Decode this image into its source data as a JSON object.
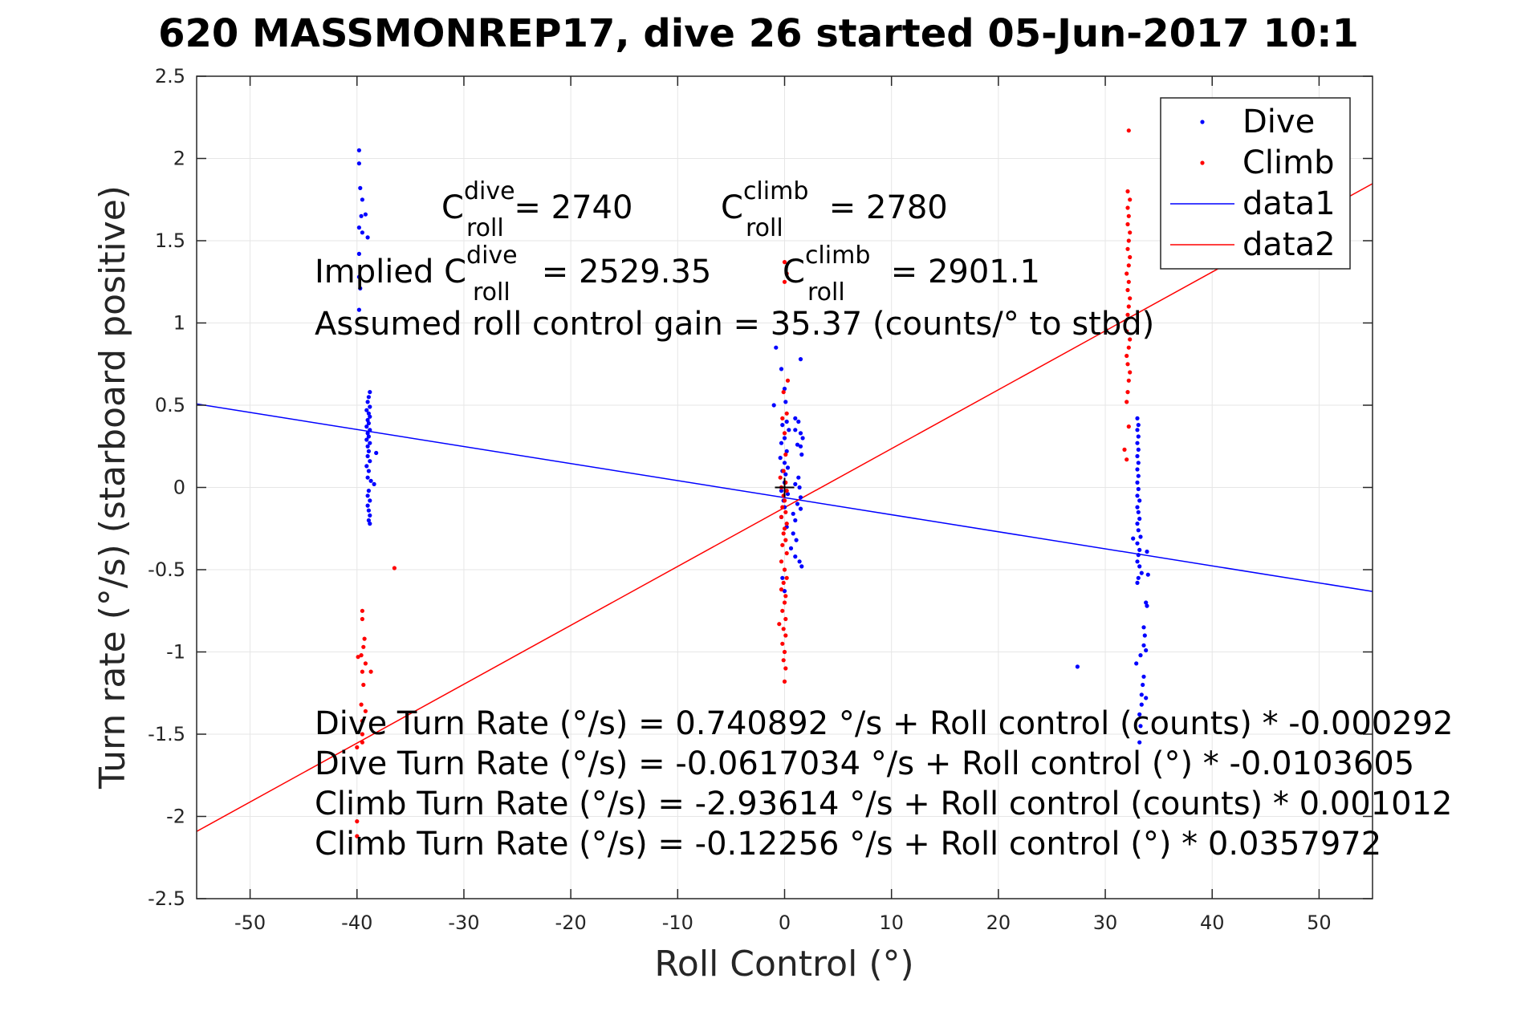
{
  "chart_data": {
    "type": "scatter",
    "title": "620 MASSMONREP17, dive 26 started 05-Jun-2017 10:1",
    "xlabel": "Roll Control (°)",
    "ylabel": "Turn rate (°/s) (starboard positive)",
    "xlim": [
      -55,
      55
    ],
    "ylim": [
      -2.5,
      2.5
    ],
    "xticks": [
      -50,
      -40,
      -30,
      -20,
      -10,
      0,
      10,
      20,
      30,
      40,
      50
    ],
    "xtick_labels": [
      "-50",
      "-40",
      "-30",
      "-20",
      "-10",
      "0",
      "10",
      "20",
      "30",
      "40",
      "50"
    ],
    "yticks": [
      -2.5,
      -2,
      -1.5,
      -1,
      -0.5,
      0,
      0.5,
      1,
      1.5,
      2,
      2.5
    ],
    "ytick_labels": [
      "-2.5",
      "-2",
      "-1.5",
      "-1",
      "-0.5",
      "0",
      "0.5",
      "1",
      "1.5",
      "2",
      "2.5"
    ],
    "grid": true,
    "legend_position": "top-right",
    "legend": [
      "Dive",
      "Climb",
      "data1",
      "data2"
    ],
    "series": [
      {
        "name": "Dive",
        "kind": "points",
        "color": "#0000ff",
        "points": [
          [
            -39.8,
            2.05
          ],
          [
            -39.8,
            1.97
          ],
          [
            -39.7,
            1.82
          ],
          [
            -39.5,
            1.75
          ],
          [
            -39.6,
            1.65
          ],
          [
            -39.2,
            1.66
          ],
          [
            -39.8,
            1.58
          ],
          [
            -39.5,
            1.55
          ],
          [
            -39.0,
            1.52
          ],
          [
            -39.8,
            1.42
          ],
          [
            -39.8,
            1.28
          ],
          [
            -39.7,
            1.21
          ],
          [
            -39.8,
            1.08
          ],
          [
            -38.8,
            0.58
          ],
          [
            -38.9,
            0.55
          ],
          [
            -39.0,
            0.52
          ],
          [
            -38.8,
            0.49
          ],
          [
            -39.1,
            0.47
          ],
          [
            -38.9,
            0.45
          ],
          [
            -38.8,
            0.43
          ],
          [
            -39.0,
            0.41
          ],
          [
            -38.9,
            0.39
          ],
          [
            -39.1,
            0.37
          ],
          [
            -38.8,
            0.35
          ],
          [
            -39.0,
            0.33
          ],
          [
            -38.9,
            0.31
          ],
          [
            -39.1,
            0.29
          ],
          [
            -38.8,
            0.27
          ],
          [
            -39.0,
            0.25
          ],
          [
            -38.9,
            0.22
          ],
          [
            -38.2,
            0.21
          ],
          [
            -39.0,
            0.19
          ],
          [
            -38.8,
            0.16
          ],
          [
            -39.1,
            0.13
          ],
          [
            -38.9,
            0.1
          ],
          [
            -39.0,
            0.06
          ],
          [
            -38.7,
            0.04
          ],
          [
            -38.4,
            0.02
          ],
          [
            -38.9,
            -0.02
          ],
          [
            -39.0,
            -0.05
          ],
          [
            -38.8,
            -0.08
          ],
          [
            -39.0,
            -0.11
          ],
          [
            -38.9,
            -0.14
          ],
          [
            -38.8,
            -0.17
          ],
          [
            -38.9,
            -0.2
          ],
          [
            -38.8,
            -0.22
          ],
          [
            -0.8,
            0.85
          ],
          [
            -0.3,
            0.72
          ],
          [
            1.5,
            0.78
          ],
          [
            -1.0,
            0.5
          ],
          [
            0.1,
            0.52
          ],
          [
            0.0,
            0.6
          ],
          [
            0.2,
            0.4
          ],
          [
            1.0,
            0.42
          ],
          [
            1.3,
            0.4
          ],
          [
            -0.2,
            0.38
          ],
          [
            0.4,
            0.35
          ],
          [
            1.0,
            0.35
          ],
          [
            1.5,
            0.33
          ],
          [
            1.7,
            0.3
          ],
          [
            0.0,
            0.3
          ],
          [
            -0.3,
            0.27
          ],
          [
            1.2,
            0.26
          ],
          [
            1.5,
            0.25
          ],
          [
            0.2,
            0.22
          ],
          [
            1.6,
            0.2
          ],
          [
            -0.4,
            0.18
          ],
          [
            0.0,
            0.15
          ],
          [
            0.3,
            0.12
          ],
          [
            -0.2,
            0.1
          ],
          [
            0.1,
            0.08
          ],
          [
            1.3,
            0.06
          ],
          [
            0.0,
            0.03
          ],
          [
            1.0,
            0.02
          ],
          [
            1.4,
            0.0
          ],
          [
            -0.3,
            -0.02
          ],
          [
            0.3,
            -0.04
          ],
          [
            1.5,
            -0.06
          ],
          [
            -0.1,
            -0.08
          ],
          [
            1.2,
            -0.1
          ],
          [
            0.0,
            -0.12
          ],
          [
            1.5,
            -0.13
          ],
          [
            0.8,
            -0.16
          ],
          [
            -0.3,
            -0.18
          ],
          [
            1.0,
            -0.2
          ],
          [
            0.2,
            -0.24
          ],
          [
            0.8,
            -0.28
          ],
          [
            1.1,
            -0.32
          ],
          [
            0.6,
            -0.37
          ],
          [
            1.0,
            -0.42
          ],
          [
            1.4,
            -0.45
          ],
          [
            1.6,
            -0.48
          ],
          [
            -0.2,
            -0.55
          ],
          [
            0.0,
            -0.63
          ],
          [
            27.4,
            -1.09
          ],
          [
            33.0,
            0.42
          ],
          [
            33.1,
            0.38
          ],
          [
            33.0,
            0.35
          ],
          [
            33.1,
            0.31
          ],
          [
            33.0,
            0.27
          ],
          [
            33.1,
            0.23
          ],
          [
            33.0,
            0.19
          ],
          [
            33.1,
            0.15
          ],
          [
            33.0,
            0.11
          ],
          [
            33.1,
            0.07
          ],
          [
            33.0,
            0.03
          ],
          [
            33.1,
            -0.01
          ],
          [
            33.0,
            -0.05
          ],
          [
            33.2,
            -0.08
          ],
          [
            33.0,
            -0.12
          ],
          [
            33.1,
            -0.15
          ],
          [
            33.2,
            -0.19
          ],
          [
            33.0,
            -0.22
          ],
          [
            33.1,
            -0.26
          ],
          [
            33.3,
            -0.3
          ],
          [
            32.6,
            -0.31
          ],
          [
            33.0,
            -0.34
          ],
          [
            33.2,
            -0.38
          ],
          [
            33.9,
            -0.39
          ],
          [
            33.1,
            -0.41
          ],
          [
            33.0,
            -0.45
          ],
          [
            33.2,
            -0.48
          ],
          [
            33.4,
            -0.52
          ],
          [
            33.1,
            -0.55
          ],
          [
            33.0,
            -0.58
          ],
          [
            34.0,
            -0.53
          ],
          [
            33.8,
            -0.7
          ],
          [
            33.9,
            -0.72
          ],
          [
            33.6,
            -0.85
          ],
          [
            33.7,
            -0.9
          ],
          [
            33.6,
            -0.96
          ],
          [
            33.8,
            -0.99
          ],
          [
            33.3,
            -1.02
          ],
          [
            32.9,
            -1.07
          ],
          [
            33.6,
            -1.15
          ],
          [
            33.5,
            -1.2
          ],
          [
            33.4,
            -1.26
          ],
          [
            33.8,
            -1.28
          ],
          [
            33.4,
            -1.32
          ],
          [
            33.2,
            -1.38
          ],
          [
            33.3,
            -1.45
          ],
          [
            33.2,
            -1.55
          ]
        ]
      },
      {
        "name": "Climb",
        "kind": "points",
        "color": "#ff0000",
        "points": [
          [
            -36.5,
            -0.49
          ],
          [
            -39.5,
            -0.75
          ],
          [
            -39.5,
            -0.8
          ],
          [
            -39.3,
            -0.92
          ],
          [
            -39.4,
            -0.97
          ],
          [
            -39.6,
            -1.02
          ],
          [
            -39.9,
            -1.03
          ],
          [
            -39.2,
            -1.07
          ],
          [
            -39.5,
            -1.12
          ],
          [
            -38.7,
            -1.12
          ],
          [
            -39.4,
            -1.2
          ],
          [
            -39.6,
            -1.32
          ],
          [
            -39.2,
            -1.36
          ],
          [
            -39.5,
            -1.42
          ],
          [
            -39.5,
            -1.5
          ],
          [
            -39.5,
            -1.55
          ],
          [
            -40.0,
            -1.58
          ],
          [
            -40.0,
            -2.03
          ],
          [
            -40.0,
            -2.12
          ],
          [
            0.0,
            1.37
          ],
          [
            0.2,
            1.3
          ],
          [
            0.0,
            1.25
          ],
          [
            0.3,
            0.65
          ],
          [
            -0.1,
            0.58
          ],
          [
            0.2,
            0.45
          ],
          [
            -0.2,
            0.42
          ],
          [
            0.0,
            0.33
          ],
          [
            0.1,
            0.2
          ],
          [
            -0.1,
            0.1
          ],
          [
            -0.4,
            0.06
          ],
          [
            0.1,
            0.03
          ],
          [
            -0.3,
            0.0
          ],
          [
            0.2,
            -0.02
          ],
          [
            -0.1,
            -0.05
          ],
          [
            0.0,
            -0.08
          ],
          [
            -0.2,
            -0.12
          ],
          [
            0.1,
            -0.15
          ],
          [
            -0.3,
            -0.18
          ],
          [
            0.2,
            -0.22
          ],
          [
            0.0,
            -0.25
          ],
          [
            -0.1,
            -0.28
          ],
          [
            0.1,
            -0.32
          ],
          [
            -0.2,
            -0.35
          ],
          [
            0.2,
            -0.4
          ],
          [
            -0.3,
            -0.45
          ],
          [
            0.0,
            -0.5
          ],
          [
            0.2,
            -0.55
          ],
          [
            -0.1,
            -0.58
          ],
          [
            -0.3,
            -0.62
          ],
          [
            0.1,
            -0.66
          ],
          [
            0.0,
            -0.7
          ],
          [
            -0.2,
            -0.75
          ],
          [
            0.1,
            -0.8
          ],
          [
            -0.5,
            -0.83
          ],
          [
            -0.1,
            -0.86
          ],
          [
            0.1,
            -0.9
          ],
          [
            -0.2,
            -0.95
          ],
          [
            0.0,
            -1.0
          ],
          [
            -0.1,
            -1.05
          ],
          [
            0.1,
            -1.1
          ],
          [
            0.0,
            -1.18
          ],
          [
            32.2,
            2.17
          ],
          [
            32.1,
            1.8
          ],
          [
            32.3,
            1.75
          ],
          [
            32.1,
            1.7
          ],
          [
            32.2,
            1.65
          ],
          [
            32.1,
            1.6
          ],
          [
            32.3,
            1.55
          ],
          [
            32.2,
            1.5
          ],
          [
            32.1,
            1.45
          ],
          [
            32.3,
            1.4
          ],
          [
            32.2,
            1.35
          ],
          [
            32.0,
            1.3
          ],
          [
            32.2,
            1.25
          ],
          [
            32.1,
            1.2
          ],
          [
            32.3,
            1.15
          ],
          [
            32.2,
            1.1
          ],
          [
            32.1,
            1.05
          ],
          [
            32.0,
            0.95
          ],
          [
            32.3,
            0.9
          ],
          [
            32.2,
            0.85
          ],
          [
            32.0,
            0.8
          ],
          [
            32.1,
            0.75
          ],
          [
            32.3,
            0.7
          ],
          [
            32.2,
            0.65
          ],
          [
            32.1,
            0.58
          ],
          [
            32.0,
            0.52
          ],
          [
            32.2,
            0.37
          ],
          [
            31.8,
            0.23
          ],
          [
            32.0,
            0.17
          ]
        ]
      },
      {
        "name": "data1",
        "kind": "line",
        "color": "#0000ff",
        "points": [
          [
            -55,
            0.508
          ],
          [
            55,
            -0.632
          ]
        ]
      },
      {
        "name": "data2",
        "kind": "line",
        "color": "#ff0000",
        "points": [
          [
            -55,
            -2.091
          ],
          [
            55,
            1.847
          ]
        ]
      }
    ],
    "center_marker": [
      0,
      0
    ],
    "annotations": {
      "c_roll_dive": {
        "c": "C",
        "sup": "dive",
        "sub": "roll",
        "rest": " = 2740"
      },
      "c_roll_climb": {
        "c": "C",
        "sup": "climb",
        "sub": "roll",
        "rest": " = 2780"
      },
      "implied_dive": {
        "prefix": "Implied C",
        "sup": "dive",
        "sub": "roll",
        "rest": " = 2529.35"
      },
      "implied_climb": {
        "c": "C",
        "sup": "climb",
        "sub": "roll",
        "rest": " = 2901.1"
      },
      "gain": "Assumed roll control gain = 35.37 (counts/° to stbd)",
      "fit_lines": [
        "Dive Turn Rate (°/s) = 0.740892 °/s + Roll control (counts) * -0.000292",
        "Dive Turn Rate (°/s) = -0.0617034 °/s + Roll control (°) * -0.0103605",
        "Climb Turn Rate (°/s) = -2.93614 °/s + Roll control (counts) * 0.001012",
        "Climb Turn Rate (°/s) = -0.12256 °/s + Roll control (°) * 0.0357972"
      ]
    }
  }
}
